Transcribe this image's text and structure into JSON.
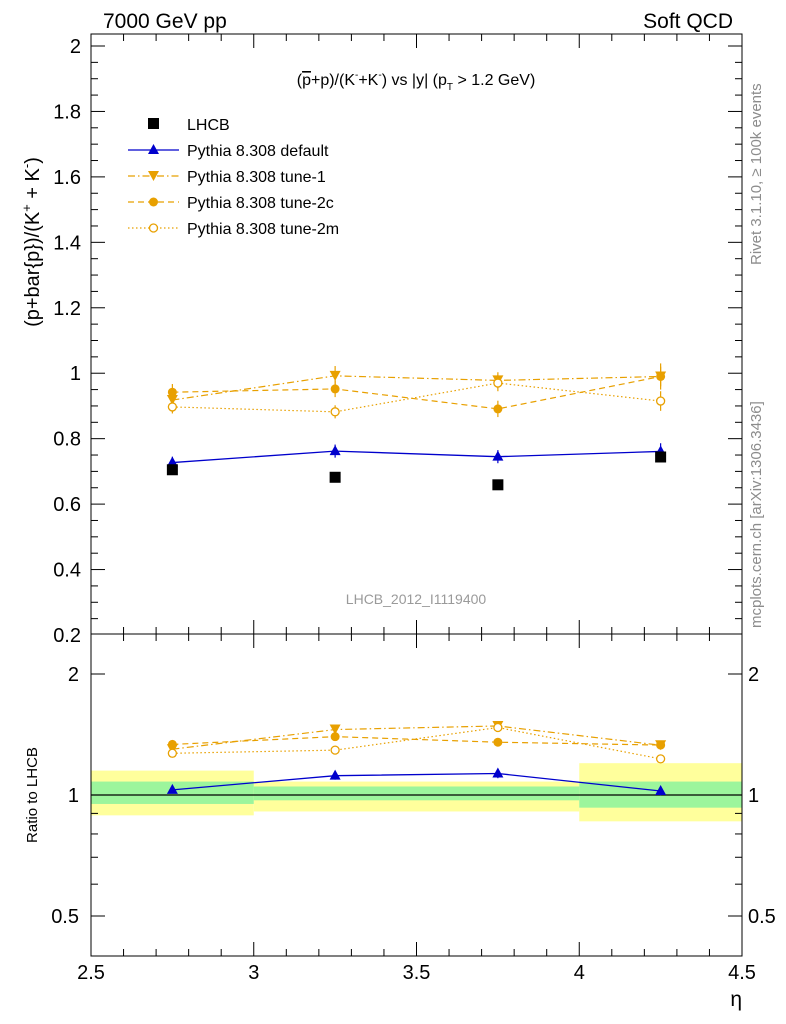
{
  "header": {
    "left": "7000 GeV pp",
    "right": "Soft QCD"
  },
  "side_labels": {
    "rivet": "Rivet 3.1.10, ≥ 100k events",
    "mcplots": "mcplots.cern.ch [arXiv:1306.3436]"
  },
  "colors": {
    "data": "#000000",
    "default": "#0000cc",
    "tunes": "#e8a000",
    "band_inner": "#9cf59c",
    "band_outer": "#ffff9c"
  },
  "chart_data": [
    {
      "type": "scatter",
      "panel": "main",
      "title": "(p̅+p)/(K⁻+K⁻) vs |y| (p_T > 1.2 GeV)",
      "title_parts": {
        "a": "(",
        "pbar": "p",
        "b": "+p)/(K",
        "sup1": "-",
        "c": "+K",
        "sup2": "-",
        "d": ") vs |y| (p",
        "sub": "T",
        "e": " > 1.2 GeV)"
      },
      "ylabel": "(p+bar{p})/(K⁺ + K⁻)",
      "ylabel_parts": {
        "a": "(p+bar{p})/(K",
        "sup1": "+",
        "b": " + K",
        "sup2": "-",
        "c": ")"
      },
      "watermark": "LHCB_2012_I1119400",
      "xlim": [
        2.5,
        4.5
      ],
      "ylim": [
        0.2,
        2.05
      ],
      "yticks": [
        "0.2",
        "0.4",
        "0.6",
        "0.8",
        "1",
        "1.2",
        "1.4",
        "1.6",
        "1.8",
        "2"
      ],
      "x": [
        2.75,
        3.25,
        3.75,
        4.25
      ],
      "series": [
        {
          "name": "LHCB",
          "values": [
            0.705,
            0.682,
            0.659,
            0.744
          ],
          "errors": [
            0.0,
            0.0,
            0.0,
            0.0
          ]
        },
        {
          "name": "Pythia 8.308 default",
          "values": [
            0.727,
            0.762,
            0.745,
            0.761
          ],
          "errors": [
            0.018,
            0.02,
            0.02,
            0.025
          ]
        },
        {
          "name": "Pythia 8.308 tune-1",
          "values": [
            0.918,
            0.992,
            0.978,
            0.99
          ],
          "errors": [
            0.02,
            0.03,
            0.025,
            0.04
          ]
        },
        {
          "name": "Pythia 8.308 tune-2c",
          "values": [
            0.942,
            0.952,
            0.891,
            0.99
          ],
          "errors": [
            0.025,
            0.025,
            0.025,
            0.03
          ]
        },
        {
          "name": "Pythia 8.308 tune-2m",
          "values": [
            0.897,
            0.882,
            0.97,
            0.915
          ],
          "errors": [
            0.02,
            0.02,
            0.025,
            0.03
          ]
        }
      ]
    },
    {
      "type": "scatter",
      "panel": "ratio",
      "ylabel": "Ratio to LHCB",
      "xlabel": "η",
      "xlim": [
        2.5,
        4.5
      ],
      "ylim": [
        0.45,
        2.3
      ],
      "yscale": "log",
      "yticks": [
        "0.5",
        "1",
        "2"
      ],
      "xticks": [
        "2.5",
        "3",
        "3.5",
        "4",
        "4.5"
      ],
      "x": [
        2.75,
        3.25,
        3.75,
        4.25
      ],
      "bins": [
        [
          2.5,
          3.0
        ],
        [
          3.0,
          3.5
        ],
        [
          3.5,
          4.0
        ],
        [
          4.0,
          4.5
        ]
      ],
      "bands": {
        "inner": [
          [
            0.95,
            1.08
          ],
          [
            0.97,
            1.05
          ],
          [
            0.97,
            1.05
          ],
          [
            0.93,
            1.08
          ]
        ],
        "outer": [
          [
            0.89,
            1.15
          ],
          [
            0.91,
            1.08
          ],
          [
            0.91,
            1.08
          ],
          [
            0.86,
            1.2
          ]
        ]
      },
      "series": [
        {
          "name": "Pythia 8.308 default",
          "values": [
            1.03,
            1.117,
            1.131,
            1.023
          ],
          "errors": [
            0.02,
            0.025,
            0.03,
            0.025
          ]
        },
        {
          "name": "Pythia 8.308 tune-1",
          "values": [
            1.3,
            1.455,
            1.485,
            1.33
          ],
          "errors": [
            0.03,
            0.03,
            0.03,
            0.03
          ]
        },
        {
          "name": "Pythia 8.308 tune-2c",
          "values": [
            1.336,
            1.397,
            1.353,
            1.331
          ],
          "errors": [
            0.03,
            0.03,
            0.03,
            0.03
          ]
        },
        {
          "name": "Pythia 8.308 tune-2m",
          "values": [
            1.27,
            1.293,
            1.472,
            1.23
          ],
          "errors": [
            0.02,
            0.02,
            0.03,
            0.025
          ]
        }
      ]
    }
  ]
}
